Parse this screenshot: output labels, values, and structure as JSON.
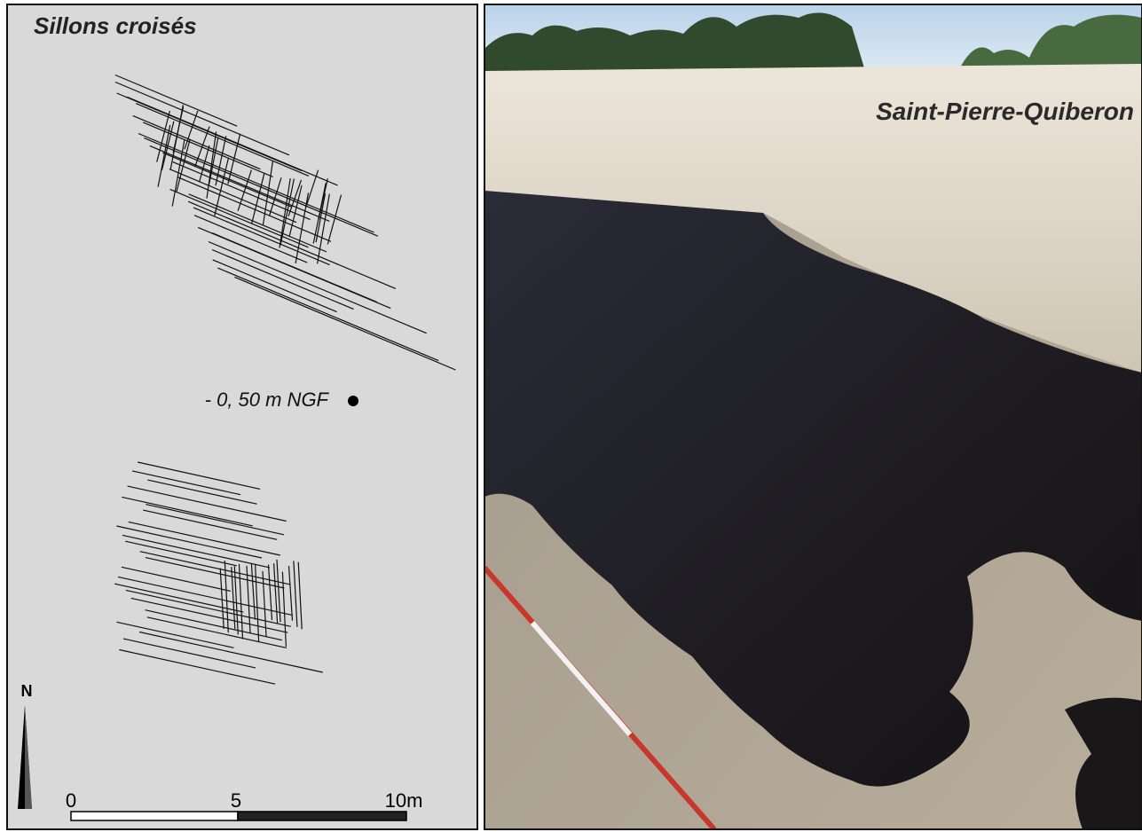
{
  "map_panel": {
    "title": "Sillons croisés",
    "level_label": "- 0, 50 m NGF",
    "north_label": "N",
    "scale_labels": [
      "0",
      "5",
      "10m"
    ]
  },
  "photo_panel": {
    "location": "Saint-Pierre-Quiberon"
  }
}
